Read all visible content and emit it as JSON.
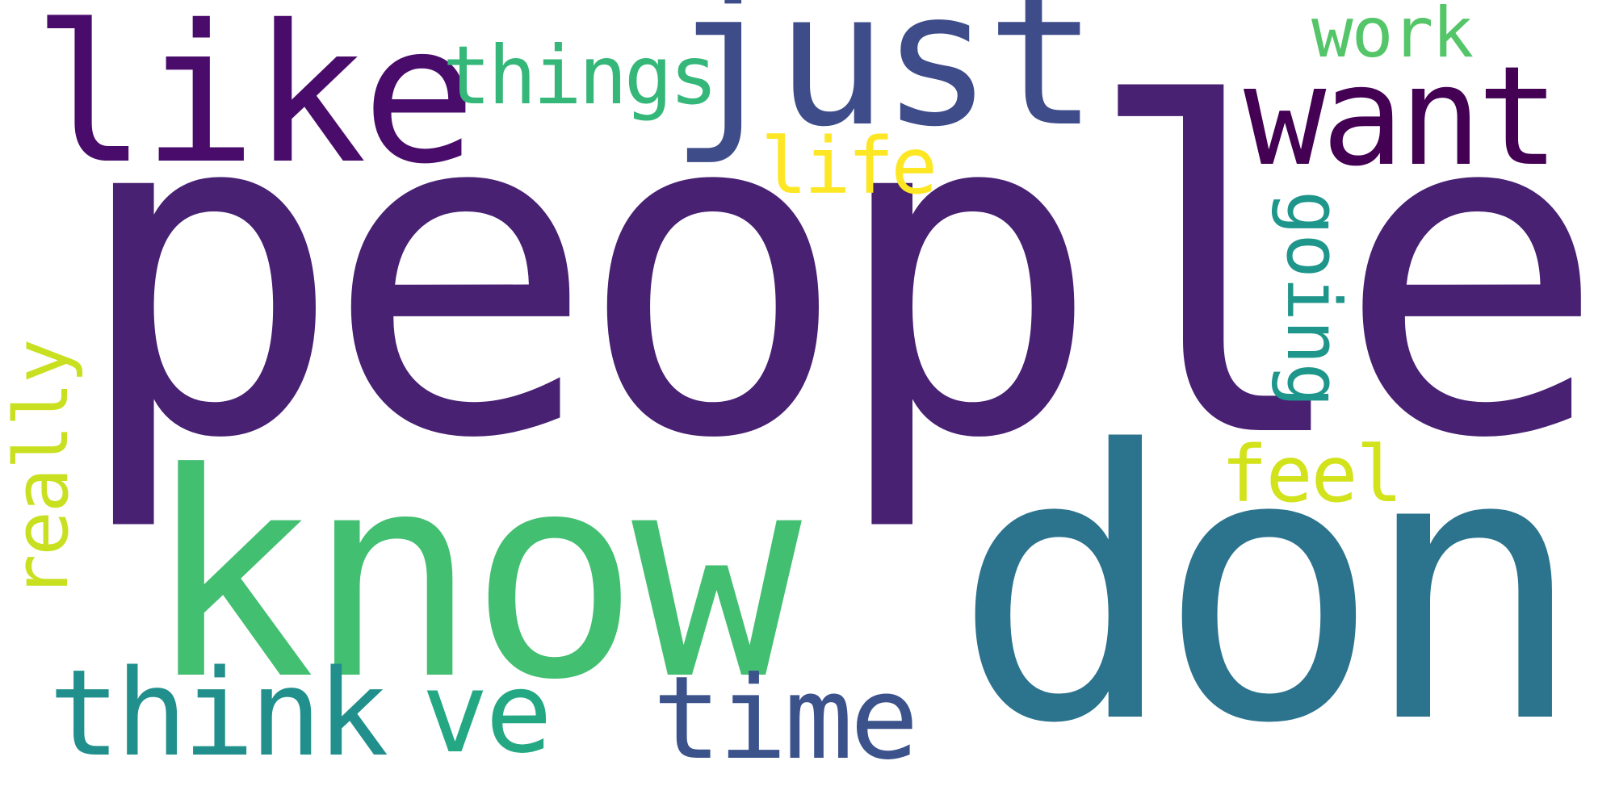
{
  "words": [
    {
      "id": "people",
      "text": "people",
      "color": "#482173"
    },
    {
      "id": "don",
      "text": "don",
      "color": "#2c738e"
    },
    {
      "id": "know",
      "text": "know",
      "color": "#43bf71"
    },
    {
      "id": "just",
      "text": "just",
      "color": "#3e4c8a"
    },
    {
      "id": "like",
      "text": "like",
      "color": "#4a0c6b"
    },
    {
      "id": "want",
      "text": "want",
      "color": "#440154"
    },
    {
      "id": "think",
      "text": "think",
      "color": "#21908d"
    },
    {
      "id": "ve",
      "text": "ve",
      "color": "#23a883"
    },
    {
      "id": "time",
      "text": "time",
      "color": "#3b528b"
    },
    {
      "id": "things",
      "text": "things",
      "color": "#35b779"
    },
    {
      "id": "life",
      "text": "life",
      "color": "#fde725"
    },
    {
      "id": "feel",
      "text": "feel",
      "color": "#d2e21b"
    },
    {
      "id": "work",
      "text": "work",
      "color": "#54c568"
    },
    {
      "id": "going",
      "text": "going",
      "color": "#1f968b"
    },
    {
      "id": "really",
      "text": "really",
      "color": "#c8e020"
    }
  ]
}
